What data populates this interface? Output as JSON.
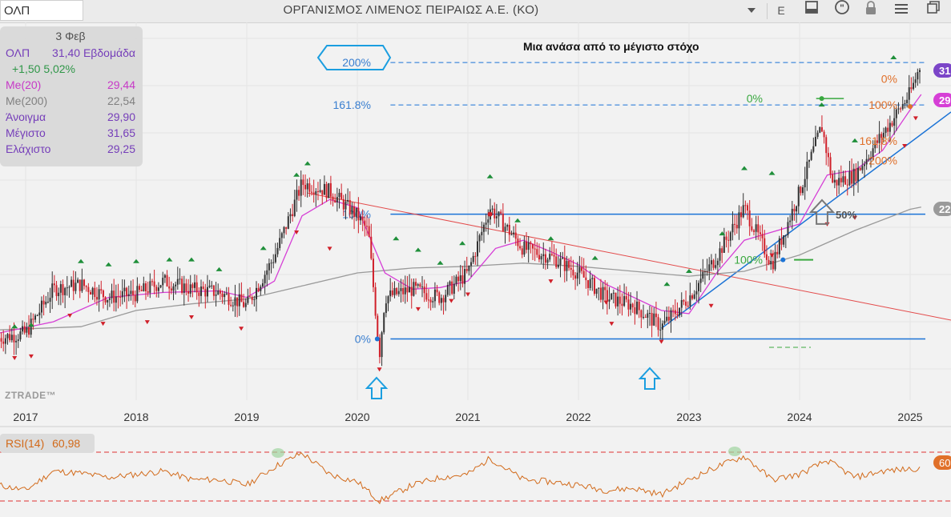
{
  "toolbar": {
    "ticker": "ΟΛΠ",
    "title": "ΟΡΓΑΝΙΣΜΟΣ ΛΙΜΕΝΟΣ ΠΕΙΡΑΙΩΣ Α.Ε. (ΚΟ)",
    "e_label": "E",
    "icons": [
      "chevron-down-icon",
      "bar-chart-icon",
      "quote-icon",
      "lock-icon",
      "menu-icon",
      "window-icon"
    ]
  },
  "info_panel": {
    "date": "3 Φεβ",
    "symbol": "ΟΛΠ",
    "price_period": "31,40 Εβδομάδα",
    "change": "+1,50 5,02%",
    "rows": [
      {
        "label": "Me(20)",
        "value": "29,44",
        "color": "#c42ac4"
      },
      {
        "label": "Me(200)",
        "value": "22,54",
        "color": "#777777"
      },
      {
        "label": "Άνοιγμα",
        "value": "29,90",
        "color": "#6b2fb5"
      },
      {
        "label": "Μέγιστο",
        "value": "31,65",
        "color": "#6b2fb5"
      },
      {
        "label": "Ελάχιστο",
        "value": "29,25",
        "color": "#6b2fb5"
      }
    ]
  },
  "watermark": "ZTRADE™",
  "annotation_text": "Μια ανάσα από το μέγιστο στόχο",
  "rsi": {
    "label": "RSI(14)",
    "value": "60,98",
    "right_tag": "60"
  },
  "right_tags": [
    {
      "text": "31",
      "color": "#7b45c8"
    },
    {
      "text": "29",
      "color": "#d63fd6"
    },
    {
      "text": "22",
      "color": "#9a9a9a"
    }
  ],
  "colors": {
    "up": "#1f8f3a",
    "down": "#d0202a",
    "ma20": "#d63fd6",
    "ma200": "#9a9a9a",
    "fib": "#1b73d6",
    "trend_red": "#e34b4b",
    "rsi": "#d26a1a"
  },
  "chart_data": {
    "type": "line",
    "x_ticks": [
      "2017",
      "2018",
      "2019",
      "2020",
      "2021",
      "2022",
      "2023",
      "2024",
      "2025"
    ],
    "series": [
      {
        "x": [
          2016.75,
          2017.0,
          2017.25,
          2017.5,
          2017.75,
          2018.0,
          2018.25,
          2018.5,
          2018.75,
          2019.0,
          2019.25,
          2019.5,
          2019.75,
          2020.0,
          2020.1,
          2020.2,
          2020.25,
          2020.5,
          2020.75,
          2021.0,
          2021.2,
          2021.5,
          2021.75,
          2022.0,
          2022.25,
          2022.5,
          2022.75,
          2023.0,
          2023.25,
          2023.5,
          2023.75,
          2024.0,
          2024.2,
          2024.3,
          2024.5,
          2024.75,
          2025.0,
          2025.1
        ],
        "values": [
          14.5,
          14.8,
          17.5,
          17.8,
          17.0,
          17.2,
          18.0,
          17.5,
          17.3,
          16.5,
          19.5,
          24.0,
          23.5,
          22.0,
          21.0,
          13.5,
          17.0,
          17.5,
          17.0,
          18.5,
          22.5,
          20.0,
          19.5,
          18.5,
          17.0,
          16.5,
          15.2,
          17.0,
          19.5,
          22.5,
          19.0,
          23.5,
          27.5,
          24.0,
          24.5,
          27.0,
          29.5,
          31.4
        ]
      },
      {
        "x": [
          2016.75,
          2017.25,
          2017.75,
          2018.25,
          2018.75,
          2019.0,
          2019.25,
          2019.5,
          2019.75,
          2020.0,
          2020.25,
          2020.5,
          2020.75,
          2021.0,
          2021.25,
          2021.5,
          2021.75,
          2022.0,
          2022.25,
          2022.5,
          2022.75,
          2023.0,
          2023.25,
          2023.5,
          2023.75,
          2024.0,
          2024.25,
          2024.5,
          2024.75,
          2025.0,
          2025.1
        ],
        "values": [
          14.8,
          15.5,
          17.0,
          17.3,
          17.4,
          17.0,
          18.0,
          22.0,
          23.0,
          22.5,
          18.5,
          17.5,
          17.6,
          18.0,
          20.0,
          20.5,
          19.8,
          19.0,
          17.8,
          17.0,
          16.2,
          16.0,
          18.5,
          20.5,
          21.0,
          21.5,
          24.5,
          24.8,
          26.0,
          28.5,
          29.44
        ]
      },
      {
        "x": [
          2016.75,
          2017.5,
          2018.0,
          2018.5,
          2019.0,
          2019.5,
          2020.0,
          2020.5,
          2021.0,
          2021.5,
          2022.0,
          2022.5,
          2023.0,
          2023.5,
          2024.0,
          2024.5,
          2025.0,
          2025.1
        ],
        "values": [
          15.0,
          15.2,
          16.2,
          16.6,
          16.9,
          17.7,
          18.5,
          18.8,
          18.9,
          19.1,
          18.9,
          18.6,
          18.3,
          18.6,
          19.6,
          21.1,
          22.4,
          22.54
        ]
      }
    ],
    "fib_labels": [
      "200%",
      "161.8%",
      "100%",
      "0%"
    ],
    "green_fib_labels": [
      "0%",
      "100%"
    ],
    "orange_fib_labels": [
      "0%",
      "100%",
      "161.8%",
      "200%"
    ],
    "arrow_label": "50%",
    "rsi_values": {
      "x": [
        2016.75,
        2017.0,
        2017.25,
        2017.5,
        2017.75,
        2018.0,
        2018.25,
        2018.5,
        2018.75,
        2019.0,
        2019.25,
        2019.5,
        2019.75,
        2020.0,
        2020.2,
        2020.5,
        2020.75,
        2021.0,
        2021.2,
        2021.5,
        2021.75,
        2022.0,
        2022.25,
        2022.5,
        2022.75,
        2023.0,
        2023.25,
        2023.5,
        2023.75,
        2024.0,
        2024.25,
        2024.5,
        2024.75,
        2025.0,
        2025.1
      ],
      "values": [
        45,
        40,
        58,
        56,
        52,
        55,
        58,
        50,
        50,
        45,
        62,
        75,
        55,
        48,
        30,
        45,
        52,
        55,
        70,
        50,
        48,
        45,
        40,
        42,
        36,
        50,
        62,
        72,
        50,
        55,
        68,
        52,
        58,
        60,
        60.98
      ]
    }
  }
}
